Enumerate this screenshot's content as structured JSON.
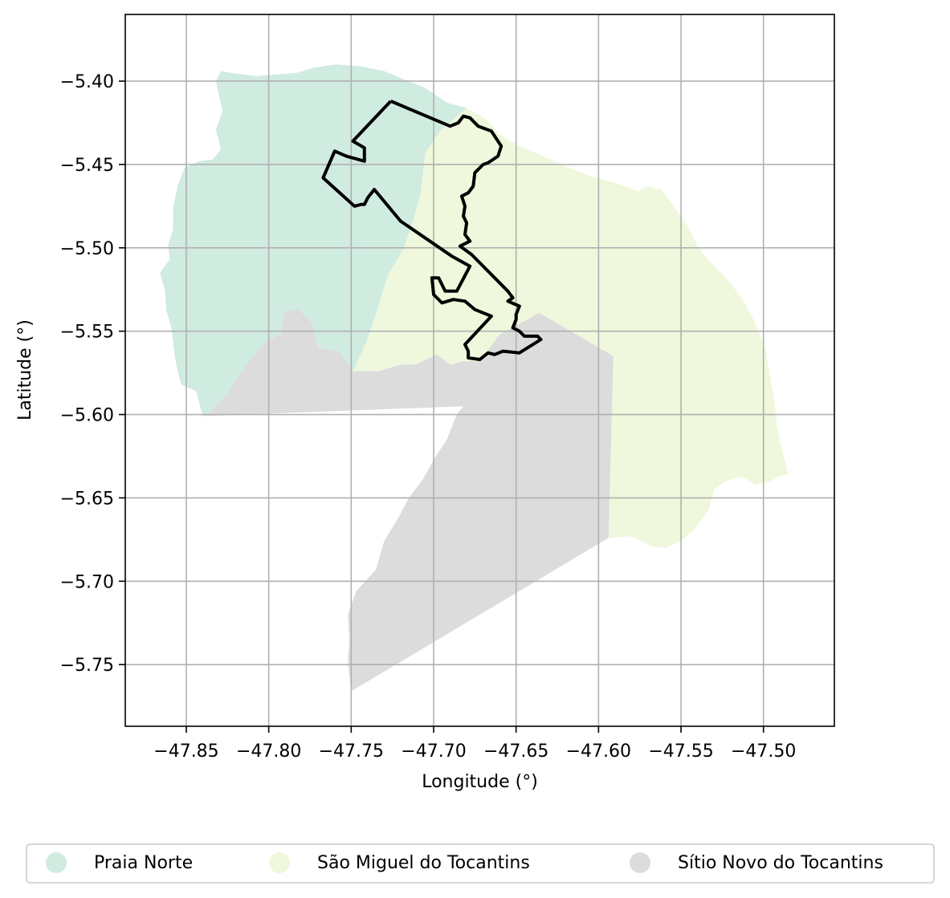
{
  "chart_data": {
    "type": "map",
    "xlabel": "Longitude (°)",
    "ylabel": "Latitude (°)",
    "xlim": [
      -47.887,
      -47.457
    ],
    "ylim": [
      -5.787,
      -5.36
    ],
    "grid": true,
    "legend_placement": "bottom-center",
    "x_ticks": [
      {
        "value": -47.85,
        "label": "−47.85"
      },
      {
        "value": -47.8,
        "label": "−47.80"
      },
      {
        "value": -47.75,
        "label": "−47.75"
      },
      {
        "value": -47.7,
        "label": "−47.70"
      },
      {
        "value": -47.65,
        "label": "−47.65"
      },
      {
        "value": -47.6,
        "label": "−47.60"
      },
      {
        "value": -47.55,
        "label": "−47.55"
      },
      {
        "value": -47.5,
        "label": "−47.50"
      }
    ],
    "y_ticks": [
      {
        "value": -5.4,
        "label": "−5.40"
      },
      {
        "value": -5.45,
        "label": "−5.45"
      },
      {
        "value": -5.5,
        "label": "−5.50"
      },
      {
        "value": -5.55,
        "label": "−5.55"
      },
      {
        "value": -5.6,
        "label": "−5.60"
      },
      {
        "value": -5.65,
        "label": "−5.65"
      },
      {
        "value": -5.7,
        "label": "−5.70"
      },
      {
        "value": -5.75,
        "label": "−5.75"
      }
    ],
    "regions": [
      {
        "name": "Praia Norte",
        "color": "#d0ebdf",
        "polygon": [
          [
            -47.829,
            -5.394
          ],
          [
            -47.823,
            -5.395
          ],
          [
            -47.808,
            -5.397
          ],
          [
            -47.795,
            -5.396
          ],
          [
            -47.783,
            -5.395
          ],
          [
            -47.773,
            -5.392
          ],
          [
            -47.759,
            -5.39
          ],
          [
            -47.745,
            -5.391
          ],
          [
            -47.73,
            -5.394
          ],
          [
            -47.718,
            -5.399
          ],
          [
            -47.705,
            -5.404
          ],
          [
            -47.692,
            -5.413
          ],
          [
            -47.68,
            -5.416
          ],
          [
            -47.696,
            -5.43
          ],
          [
            -47.705,
            -5.443
          ],
          [
            -47.708,
            -5.468
          ],
          [
            -47.712,
            -5.482
          ],
          [
            -47.718,
            -5.5
          ],
          [
            -47.728,
            -5.517
          ],
          [
            -47.735,
            -5.54
          ],
          [
            -47.741,
            -5.557
          ],
          [
            -47.749,
            -5.574
          ],
          [
            -47.757,
            -5.562
          ],
          [
            -47.77,
            -5.56
          ],
          [
            -47.774,
            -5.545
          ],
          [
            -47.782,
            -5.537
          ],
          [
            -47.79,
            -5.538
          ],
          [
            -47.793,
            -5.552
          ],
          [
            -47.801,
            -5.556
          ],
          [
            -47.807,
            -5.562
          ],
          [
            -47.815,
            -5.572
          ],
          [
            -47.826,
            -5.588
          ],
          [
            -47.836,
            -5.599
          ],
          [
            -47.84,
            -5.601
          ],
          [
            -47.844,
            -5.586
          ],
          [
            -47.853,
            -5.582
          ],
          [
            -47.855,
            -5.575
          ],
          [
            -47.857,
            -5.565
          ],
          [
            -47.859,
            -5.548
          ],
          [
            -47.862,
            -5.538
          ],
          [
            -47.863,
            -5.525
          ],
          [
            -47.866,
            -5.515
          ],
          [
            -47.86,
            -5.507
          ],
          [
            -47.861,
            -5.498
          ],
          [
            -47.858,
            -5.489
          ],
          [
            -47.858,
            -5.476
          ],
          [
            -47.855,
            -5.462
          ],
          [
            -47.851,
            -5.452
          ],
          [
            -47.842,
            -5.448
          ],
          [
            -47.834,
            -5.447
          ],
          [
            -47.829,
            -5.441
          ],
          [
            -47.832,
            -5.429
          ],
          [
            -47.828,
            -5.418
          ],
          [
            -47.832,
            -5.4
          ]
        ]
      },
      {
        "name": "São Miguel do Tocantins",
        "color": "#eff8dc",
        "polygon": [
          [
            -47.68,
            -5.416
          ],
          [
            -47.668,
            -5.423
          ],
          [
            -47.66,
            -5.432
          ],
          [
            -47.648,
            -5.439
          ],
          [
            -47.634,
            -5.445
          ],
          [
            -47.62,
            -5.451
          ],
          [
            -47.605,
            -5.457
          ],
          [
            -47.59,
            -5.461
          ],
          [
            -47.576,
            -5.466
          ],
          [
            -47.57,
            -5.463
          ],
          [
            -47.562,
            -5.465
          ],
          [
            -47.555,
            -5.474
          ],
          [
            -47.546,
            -5.487
          ],
          [
            -47.538,
            -5.502
          ],
          [
            -47.529,
            -5.512
          ],
          [
            -47.52,
            -5.521
          ],
          [
            -47.512,
            -5.532
          ],
          [
            -47.505,
            -5.545
          ],
          [
            -47.499,
            -5.56
          ],
          [
            -47.496,
            -5.577
          ],
          [
            -47.493,
            -5.594
          ],
          [
            -47.492,
            -5.606
          ],
          [
            -47.489,
            -5.62
          ],
          [
            -47.485,
            -5.636
          ],
          [
            -47.49,
            -5.637
          ],
          [
            -47.498,
            -5.641
          ],
          [
            -47.505,
            -5.642
          ],
          [
            -47.513,
            -5.637
          ],
          [
            -47.523,
            -5.64
          ],
          [
            -47.53,
            -5.645
          ],
          [
            -47.533,
            -5.657
          ],
          [
            -47.542,
            -5.669
          ],
          [
            -47.55,
            -5.676
          ],
          [
            -47.559,
            -5.68
          ],
          [
            -47.568,
            -5.679
          ],
          [
            -47.58,
            -5.673
          ],
          [
            -47.594,
            -5.674
          ],
          [
            -47.591,
            -5.565
          ],
          [
            -47.636,
            -5.539
          ],
          [
            -47.643,
            -5.543
          ],
          [
            -47.66,
            -5.552
          ],
          [
            -47.672,
            -5.568
          ],
          [
            -47.682,
            -5.568
          ],
          [
            -47.69,
            -5.57
          ],
          [
            -47.698,
            -5.564
          ],
          [
            -47.711,
            -5.57
          ],
          [
            -47.72,
            -5.57
          ],
          [
            -47.733,
            -5.574
          ],
          [
            -47.749,
            -5.574
          ],
          [
            -47.741,
            -5.557
          ],
          [
            -47.735,
            -5.54
          ],
          [
            -47.728,
            -5.517
          ],
          [
            -47.718,
            -5.5
          ],
          [
            -47.712,
            -5.482
          ],
          [
            -47.708,
            -5.468
          ],
          [
            -47.705,
            -5.443
          ],
          [
            -47.696,
            -5.43
          ]
        ]
      },
      {
        "name": "Sítio Novo do Tocantins",
        "color": "#dcdcdc",
        "polygon": [
          [
            -47.84,
            -5.601
          ],
          [
            -47.836,
            -5.599
          ],
          [
            -47.826,
            -5.588
          ],
          [
            -47.815,
            -5.572
          ],
          [
            -47.807,
            -5.562
          ],
          [
            -47.801,
            -5.556
          ],
          [
            -47.793,
            -5.552
          ],
          [
            -47.79,
            -5.538
          ],
          [
            -47.782,
            -5.537
          ],
          [
            -47.774,
            -5.545
          ],
          [
            -47.77,
            -5.56
          ],
          [
            -47.757,
            -5.562
          ],
          [
            -47.749,
            -5.574
          ],
          [
            -47.733,
            -5.574
          ],
          [
            -47.72,
            -5.57
          ],
          [
            -47.711,
            -5.57
          ],
          [
            -47.698,
            -5.564
          ],
          [
            -47.69,
            -5.57
          ],
          [
            -47.682,
            -5.568
          ],
          [
            -47.672,
            -5.568
          ],
          [
            -47.66,
            -5.552
          ],
          [
            -47.643,
            -5.543
          ],
          [
            -47.636,
            -5.539
          ],
          [
            -47.591,
            -5.565
          ],
          [
            -47.594,
            -5.674
          ],
          [
            -47.75,
            -5.766
          ],
          [
            -47.752,
            -5.748
          ],
          [
            -47.751,
            -5.735
          ],
          [
            -47.752,
            -5.72
          ],
          [
            -47.747,
            -5.706
          ],
          [
            -47.735,
            -5.693
          ],
          [
            -47.73,
            -5.676
          ],
          [
            -47.722,
            -5.663
          ],
          [
            -47.715,
            -5.65
          ],
          [
            -47.706,
            -5.638
          ],
          [
            -47.7,
            -5.627
          ],
          [
            -47.692,
            -5.615
          ],
          [
            -47.686,
            -5.6
          ],
          [
            -47.682,
            -5.595
          ]
        ]
      }
    ],
    "boundary": {
      "color": "#000000",
      "path": [
        [
          -47.726,
          -5.412
        ],
        [
          -47.69,
          -5.427
        ],
        [
          -47.685,
          -5.425
        ],
        [
          -47.682,
          -5.421
        ],
        [
          -47.678,
          -5.422
        ],
        [
          -47.673,
          -5.427
        ],
        [
          -47.665,
          -5.43
        ],
        [
          -47.661,
          -5.436
        ],
        [
          -47.659,
          -5.439
        ],
        [
          -47.661,
          -5.445
        ],
        [
          -47.667,
          -5.449
        ],
        [
          -47.67,
          -5.45
        ],
        [
          -47.675,
          -5.455
        ],
        [
          -47.676,
          -5.463
        ],
        [
          -47.679,
          -5.467
        ],
        [
          -47.683,
          -5.469
        ],
        [
          -47.681,
          -5.475
        ],
        [
          -47.682,
          -5.481
        ],
        [
          -47.68,
          -5.485
        ],
        [
          -47.681,
          -5.492
        ],
        [
          -47.678,
          -5.496
        ],
        [
          -47.684,
          -5.499
        ],
        [
          -47.677,
          -5.504
        ],
        [
          -47.655,
          -5.526
        ],
        [
          -47.652,
          -5.53
        ],
        [
          -47.655,
          -5.532
        ],
        [
          -47.648,
          -5.535
        ],
        [
          -47.65,
          -5.54
        ],
        [
          -47.65,
          -5.543
        ],
        [
          -47.652,
          -5.548
        ],
        [
          -47.648,
          -5.55
        ],
        [
          -47.645,
          -5.553
        ],
        [
          -47.637,
          -5.553
        ],
        [
          -47.635,
          -5.555
        ],
        [
          -47.648,
          -5.563
        ],
        [
          -47.658,
          -5.562
        ],
        [
          -47.663,
          -5.564
        ],
        [
          -47.667,
          -5.563
        ],
        [
          -47.672,
          -5.567
        ],
        [
          -47.679,
          -5.566
        ],
        [
          -47.679,
          -5.562
        ],
        [
          -47.681,
          -5.558
        ],
        [
          -47.665,
          -5.541
        ],
        [
          -47.675,
          -5.537
        ],
        [
          -47.681,
          -5.532
        ],
        [
          -47.688,
          -5.531
        ],
        [
          -47.695,
          -5.533
        ],
        [
          -47.7,
          -5.528
        ],
        [
          -47.701,
          -5.518
        ],
        [
          -47.697,
          -5.518
        ],
        [
          -47.693,
          -5.526
        ],
        [
          -47.686,
          -5.526
        ],
        [
          -47.678,
          -5.511
        ],
        [
          -47.689,
          -5.505
        ],
        [
          -47.72,
          -5.484
        ],
        [
          -47.736,
          -5.465
        ],
        [
          -47.74,
          -5.47
        ],
        [
          -47.742,
          -5.474
        ],
        [
          -47.744,
          -5.474
        ],
        [
          -47.748,
          -5.475
        ],
        [
          -47.767,
          -5.458
        ],
        [
          -47.76,
          -5.442
        ],
        [
          -47.753,
          -5.445
        ],
        [
          -47.742,
          -5.448
        ],
        [
          -47.742,
          -5.44
        ],
        [
          -47.749,
          -5.436
        ],
        [
          -47.726,
          -5.412
        ]
      ]
    },
    "legend": [
      {
        "label": "Praia Norte",
        "color": "#d0ebdf"
      },
      {
        "label": "São Miguel do Tocantins",
        "color": "#eff8dc"
      },
      {
        "label": "Sítio Novo do Tocantins",
        "color": "#dcdcdc"
      }
    ]
  }
}
